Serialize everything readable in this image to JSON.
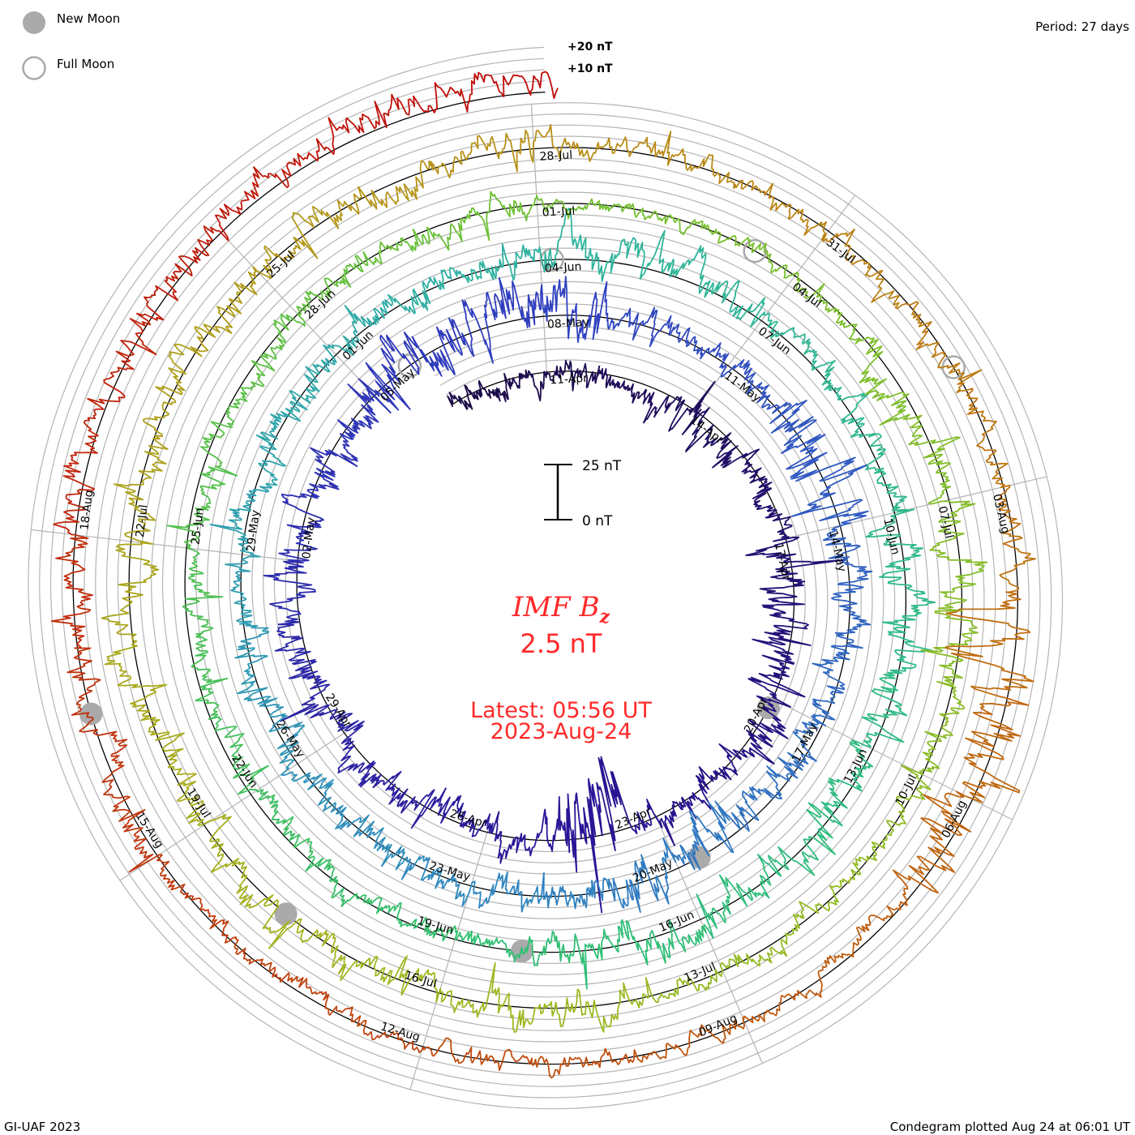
{
  "legend": {
    "new_moon_label": "New Moon",
    "full_moon_label": "Full Moon",
    "new_moon_color": "#aaaaaa",
    "full_moon_color": "#aaaaaa"
  },
  "period_label": "Period: 27 days",
  "footer_left": "GI-UAF 2023",
  "footer_right": "Condegram plotted Aug 24 at 06:01 UT",
  "center": {
    "title": "IMF B",
    "title_subscript": "z",
    "latest_value": "2.5 nT",
    "latest_time": "Latest: 05:56 UT",
    "latest_date": "2023-Aug-24",
    "text_color": "#ff2a2a"
  },
  "scale_bar": {
    "top_label": "25 nT",
    "bottom_label": "0 nT"
  },
  "chart_data": {
    "type": "line",
    "projection": "spiral-condegram",
    "title": "IMF Bz",
    "unit": "nT",
    "period_days": 27,
    "start": "2023-04-09T00:00:00Z",
    "end": "2023-08-24T05:56:00Z",
    "latest_value": 2.5,
    "grid_step_nT": 5,
    "grid_labels": [
      "+20 nT",
      "+10 nT"
    ],
    "scale_bar_nT": [
      0,
      25
    ],
    "date_labels": [
      "11-Apr",
      "14-Apr",
      "17-Apr",
      "20-Apr",
      "23-Apr",
      "26-Apr",
      "29-Apr",
      "02-May",
      "05-May",
      "08-May",
      "11-May",
      "14-May",
      "17-May",
      "20-May",
      "23-May",
      "26-May",
      "29-May",
      "01-Jun",
      "04-Jun",
      "07-Jun",
      "10-Jun",
      "13-Jun",
      "16-Jun",
      "19-Jun",
      "22-Jun",
      "25-Jun",
      "28-Jun",
      "01-Jul",
      "04-Jul",
      "07-Jul",
      "10-Jul",
      "13-Jul",
      "16-Jul",
      "19-Jul",
      "22-Jul",
      "25-Jul",
      "28-Jul",
      "31-Jul",
      "03-Aug",
      "06-Aug",
      "09-Aug",
      "12-Aug",
      "15-Aug",
      "18-Aug"
    ],
    "activity_segments": [
      {
        "from": "2023-04-09T00:00:00Z",
        "to": "2023-04-13T00:00:00Z",
        "mean": -1,
        "sigma": 3
      },
      {
        "from": "2023-04-13T00:00:00Z",
        "to": "2023-04-17T00:00:00Z",
        "mean": -1,
        "sigma": 4
      },
      {
        "from": "2023-04-17T00:00:00Z",
        "to": "2023-04-21T00:00:00Z",
        "mean": -1,
        "sigma": 5.5
      },
      {
        "from": "2023-04-21T00:00:00Z",
        "to": "2023-04-23T12:00:00Z",
        "mean": 0,
        "sigma": 3.5
      },
      {
        "from": "2023-04-23T12:00:00Z",
        "to": "2023-04-24T16:00:00Z",
        "mean": -8,
        "sigma": 13
      },
      {
        "from": "2023-04-24T16:00:00Z",
        "to": "2023-05-05T00:00:00Z",
        "mean": -1,
        "sigma": 4.5
      },
      {
        "from": "2023-05-05T00:00:00Z",
        "to": "2023-05-09T00:00:00Z",
        "mean": 0,
        "sigma": 7
      },
      {
        "from": "2023-05-09T00:00:00Z",
        "to": "2023-05-12T00:00:00Z",
        "mean": 0,
        "sigma": 3
      },
      {
        "from": "2023-05-12T00:00:00Z",
        "to": "2023-05-14T00:00:00Z",
        "mean": 0,
        "sigma": 7
      },
      {
        "from": "2023-05-14T00:00:00Z",
        "to": "2023-05-19T00:00:00Z",
        "mean": -1,
        "sigma": 4
      },
      {
        "from": "2023-05-19T00:00:00Z",
        "to": "2023-05-21T00:00:00Z",
        "mean": 1,
        "sigma": 7
      },
      {
        "from": "2023-05-21T00:00:00Z",
        "to": "2023-06-04T00:00:00Z",
        "mean": 0,
        "sigma": 4
      },
      {
        "from": "2023-06-04T00:00:00Z",
        "to": "2023-06-07T00:00:00Z",
        "mean": 1,
        "sigma": 5
      },
      {
        "from": "2023-06-07T00:00:00Z",
        "to": "2023-06-10T00:00:00Z",
        "mean": 0,
        "sigma": 3
      },
      {
        "from": "2023-06-10T00:00:00Z",
        "to": "2023-06-18T00:00:00Z",
        "mean": 0,
        "sigma": 5
      },
      {
        "from": "2023-06-18T00:00:00Z",
        "to": "2023-07-01T00:00:00Z",
        "mean": 0,
        "sigma": 3
      },
      {
        "from": "2023-07-01T00:00:00Z",
        "to": "2023-07-05T00:00:00Z",
        "mean": 0,
        "sigma": 2
      },
      {
        "from": "2023-07-05T00:00:00Z",
        "to": "2023-07-09T00:00:00Z",
        "mean": 0,
        "sigma": 5
      },
      {
        "from": "2023-07-09T00:00:00Z",
        "to": "2023-07-14T00:00:00Z",
        "mean": 0,
        "sigma": 2.5
      },
      {
        "from": "2023-07-14T00:00:00Z",
        "to": "2023-07-22T00:00:00Z",
        "mean": 0,
        "sigma": 4.5
      },
      {
        "from": "2023-07-22T00:00:00Z",
        "to": "2023-07-28T00:00:00Z",
        "mean": 0,
        "sigma": 4
      },
      {
        "from": "2023-07-28T00:00:00Z",
        "to": "2023-08-04T00:00:00Z",
        "mean": 0,
        "sigma": 3
      },
      {
        "from": "2023-08-04T00:00:00Z",
        "to": "2023-08-07T00:00:00Z",
        "mean": 0,
        "sigma": 8
      },
      {
        "from": "2023-08-07T00:00:00Z",
        "to": "2023-08-15T00:00:00Z",
        "mean": 0,
        "sigma": 2.5
      },
      {
        "from": "2023-08-15T00:00:00Z",
        "to": "2023-08-24T06:00:00Z",
        "mean": 1,
        "sigma": 4
      }
    ],
    "new_moons": [
      "2023-04-20T04:12:00Z",
      "2023-05-19T15:53:00Z",
      "2023-06-18T04:37:00Z",
      "2023-07-17T18:32:00Z",
      "2023-08-16T09:38:00Z"
    ],
    "full_moons": [
      "2023-05-05T17:34:00Z",
      "2023-06-04T03:41:00Z",
      "2023-07-03T11:39:00Z",
      "2023-08-01T18:31:00Z"
    ],
    "color_stops": [
      {
        "date": "2023-04-09T00:00:00Z",
        "color": "#1a0a45"
      },
      {
        "date": "2023-04-24T00:00:00Z",
        "color": "#2a1494"
      },
      {
        "date": "2023-05-08T00:00:00Z",
        "color": "#3040c0"
      },
      {
        "date": "2023-05-23T00:00:00Z",
        "color": "#3088c0"
      },
      {
        "date": "2023-06-04T00:00:00Z",
        "color": "#30b4a0"
      },
      {
        "date": "2023-06-19T00:00:00Z",
        "color": "#30c070"
      },
      {
        "date": "2023-07-01T00:00:00Z",
        "color": "#70c030"
      },
      {
        "date": "2023-07-16T00:00:00Z",
        "color": "#a0b820"
      },
      {
        "date": "2023-07-28T00:00:00Z",
        "color": "#b89018"
      },
      {
        "date": "2023-08-04T00:00:00Z",
        "color": "#c07010"
      },
      {
        "date": "2023-08-12T00:00:00Z",
        "color": "#c04a10"
      },
      {
        "date": "2023-08-24T06:00:00Z",
        "color": "#c00a0a"
      }
    ]
  }
}
